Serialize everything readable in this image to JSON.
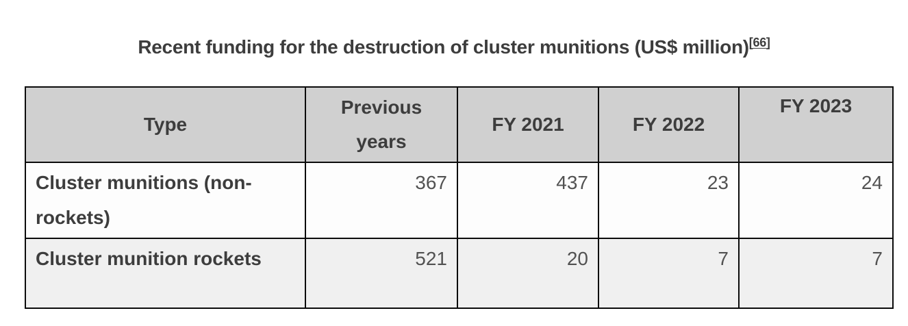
{
  "title": {
    "text": "Recent funding for the destruction of cluster munitions (US$ million)",
    "footnote": {
      "bracket_open": "[",
      "ref_number": "66",
      "bracket_close": "]"
    }
  },
  "table": {
    "columns": [
      "Type",
      "Previous years",
      "FY 2021",
      "FY 2022",
      "FY 2023"
    ],
    "rows": [
      {
        "type": "Cluster munitions (non-rockets)",
        "values": [
          "367",
          "437",
          "23",
          "24"
        ]
      },
      {
        "type": "Cluster munition rockets",
        "values": [
          "521",
          "20",
          "7",
          "7"
        ]
      }
    ]
  },
  "colors": {
    "header_background": "#d0d0d0",
    "stripe_row_background": "#f0f0f0",
    "plain_row_background": "#fdfdfd",
    "table_border": "#0b0b0b",
    "heading_text": "#3d3d3d",
    "number_text": "#525252",
    "page_background": "#ffffff"
  }
}
